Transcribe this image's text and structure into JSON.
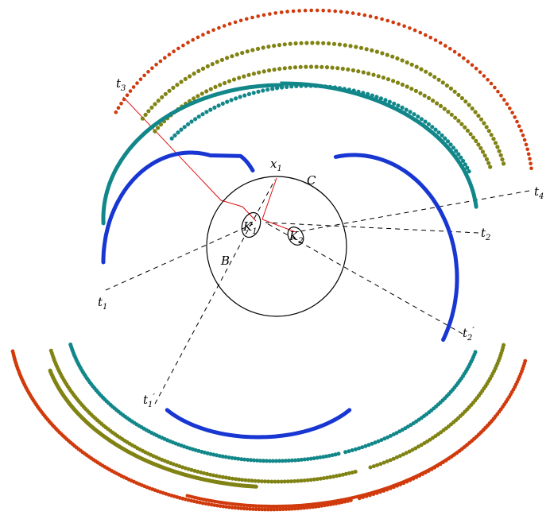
{
  "colors": {
    "blue": "#1836d2",
    "teal": "#12878a",
    "olive": "#808314",
    "red": "#d03a0c",
    "construction": "#e01010",
    "outline": "#000000"
  },
  "labels": {
    "x1": {
      "base": "x",
      "sub": "1"
    },
    "C": {
      "base": "C"
    },
    "B": {
      "base": "B"
    },
    "K1": {
      "base": "K",
      "sub": "1"
    },
    "K2": {
      "base": "K",
      "sub": "2"
    },
    "t1": {
      "base": "t",
      "sub": "1"
    },
    "t1p": {
      "base": "t",
      "sub": "1",
      "sup": "′"
    },
    "t2": {
      "base": "t",
      "sub": "2"
    },
    "t2p": {
      "base": "t",
      "sub": "2",
      "sup": "′"
    },
    "t3": {
      "base": "t",
      "sub": "3"
    },
    "t4": {
      "base": "t",
      "sub": "4"
    }
  }
}
